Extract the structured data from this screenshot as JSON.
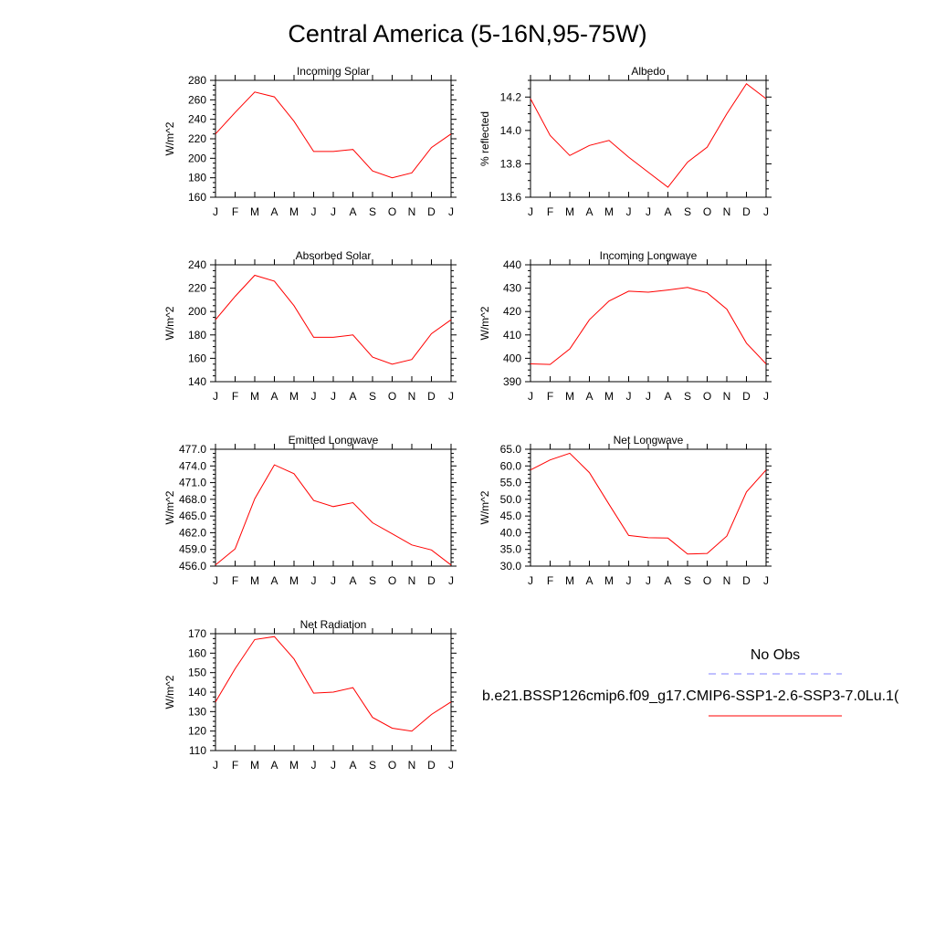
{
  "page": {
    "title": "Central America (5-16N,95-75W)"
  },
  "colors": {
    "model_line": "#ff0000",
    "obs_line": "#8080ff",
    "axis": "#000000"
  },
  "legend": {
    "obs_label": "No Obs",
    "model_label": "b.e21.BSSP126cmip6.f09_g17.CMIP6-SSP1-2.6-SSP3-7.0Lu.1("
  },
  "chart_data": [
    {
      "type": "line",
      "title": "Incoming Solar",
      "ylabel": "W/m^2",
      "categories": [
        "J",
        "F",
        "M",
        "A",
        "M",
        "J",
        "J",
        "A",
        "S",
        "O",
        "N",
        "D",
        "J"
      ],
      "ylim": [
        160,
        280
      ],
      "yticks": [
        "160",
        "180",
        "200",
        "220",
        "240",
        "260",
        "280"
      ],
      "series": [
        {
          "values": [
            225,
            247,
            268,
            263,
            238,
            207,
            207,
            209,
            187,
            180,
            185,
            211,
            225
          ]
        }
      ]
    },
    {
      "type": "line",
      "title": "Albedo",
      "ylabel": "% reflected",
      "categories": [
        "J",
        "F",
        "M",
        "A",
        "M",
        "J",
        "J",
        "A",
        "S",
        "O",
        "N",
        "D",
        "J"
      ],
      "ylim": [
        13.6,
        14.3
      ],
      "yticks": [
        "13.6",
        "13.8",
        "14.0",
        "14.2"
      ],
      "series": [
        {
          "values": [
            14.19,
            13.97,
            13.85,
            13.91,
            13.94,
            13.84,
            13.75,
            13.66,
            13.81,
            13.9,
            14.1,
            14.28,
            14.19
          ]
        }
      ]
    },
    {
      "type": "line",
      "title": "Absorbed Solar",
      "ylabel": "W/m^2",
      "categories": [
        "J",
        "F",
        "M",
        "A",
        "M",
        "J",
        "J",
        "A",
        "S",
        "O",
        "N",
        "D",
        "J"
      ],
      "ylim": [
        140,
        240
      ],
      "yticks": [
        "140",
        "160",
        "180",
        "200",
        "220",
        "240"
      ],
      "series": [
        {
          "values": [
            193,
            213,
            231,
            226,
            205,
            178,
            178,
            180,
            161,
            155,
            159,
            181,
            193
          ]
        }
      ]
    },
    {
      "type": "line",
      "title": "Incoming Longwave",
      "ylabel": "W/m^2",
      "categories": [
        "J",
        "F",
        "M",
        "A",
        "M",
        "J",
        "J",
        "A",
        "S",
        "O",
        "N",
        "D",
        "J"
      ],
      "ylim": [
        390,
        440
      ],
      "yticks": [
        "390",
        "400",
        "410",
        "420",
        "430",
        "440"
      ],
      "series": [
        {
          "values": [
            397.6,
            397.4,
            404,
            416.5,
            424.5,
            428.7,
            428.3,
            429.2,
            430.3,
            428,
            421,
            406.5,
            397.6
          ]
        }
      ]
    },
    {
      "type": "line",
      "title": "Emitted Longwave",
      "ylabel": "W/m^2",
      "categories": [
        "J",
        "F",
        "M",
        "A",
        "M",
        "J",
        "J",
        "A",
        "S",
        "O",
        "N",
        "D",
        "J"
      ],
      "ylim": [
        456,
        477
      ],
      "yticks": [
        "456.0",
        "459.0",
        "462.0",
        "465.0",
        "468.0",
        "471.0",
        "474.0",
        "477.0"
      ],
      "series": [
        {
          "values": [
            456.2,
            459.1,
            468.1,
            474.2,
            472.6,
            467.8,
            466.7,
            467.4,
            463.8,
            461.8,
            459.8,
            458.9,
            456.2
          ]
        }
      ]
    },
    {
      "type": "line",
      "title": "Net Longwave",
      "ylabel": "W/m^2",
      "categories": [
        "J",
        "F",
        "M",
        "A",
        "M",
        "J",
        "J",
        "A",
        "S",
        "O",
        "N",
        "D",
        "J"
      ],
      "ylim": [
        30,
        65
      ],
      "yticks": [
        "30.0",
        "35.0",
        "40.0",
        "45.0",
        "50.0",
        "55.0",
        "60.0",
        "65.0"
      ],
      "series": [
        {
          "values": [
            58.8,
            61.8,
            63.8,
            58,
            48.5,
            39.2,
            38.5,
            38.4,
            33.6,
            33.8,
            39,
            52.2,
            58.8
          ]
        }
      ]
    },
    {
      "type": "line",
      "title": "Net Radiation",
      "ylabel": "W/m^2",
      "categories": [
        "J",
        "F",
        "M",
        "A",
        "M",
        "J",
        "J",
        "A",
        "S",
        "O",
        "N",
        "D",
        "J"
      ],
      "ylim": [
        110,
        170
      ],
      "yticks": [
        "110",
        "120",
        "130",
        "140",
        "150",
        "160",
        "170"
      ],
      "series": [
        {
          "values": [
            135,
            152,
            167,
            168.5,
            157,
            139.5,
            140,
            142.3,
            127,
            121.5,
            120,
            128.5,
            135
          ]
        }
      ]
    }
  ]
}
